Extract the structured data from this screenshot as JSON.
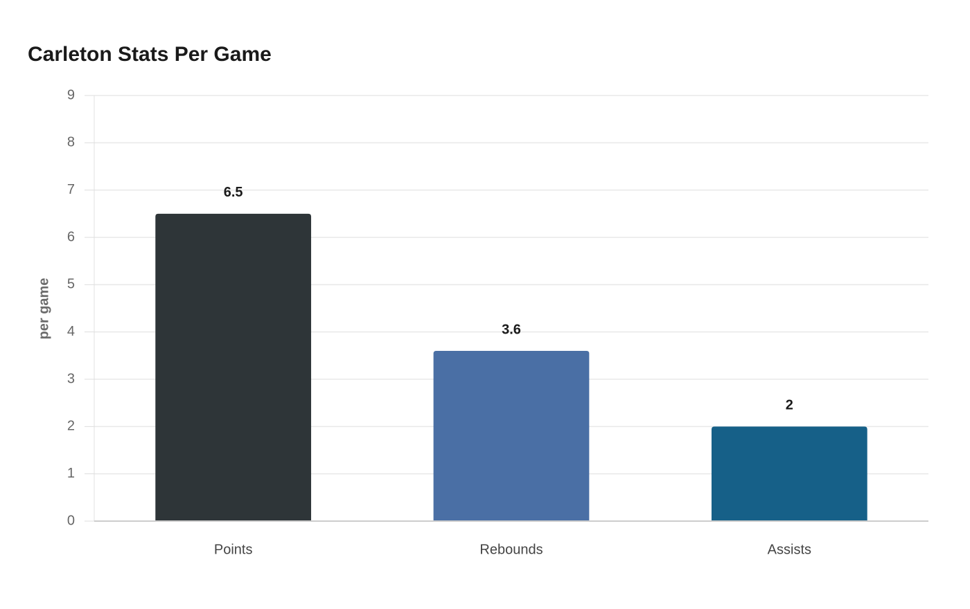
{
  "chart_data": {
    "type": "bar",
    "title": "Carleton Stats Per Game",
    "y_label": "per game",
    "categories": [
      "Points",
      "Rebounds",
      "Assists"
    ],
    "values": [
      6.5,
      3.6,
      2
    ],
    "colors": [
      "#2e3538",
      "#4a6fa5",
      "#166088"
    ],
    "ylim": [
      0,
      9
    ],
    "yticks": [
      0,
      1,
      2,
      3,
      4,
      5,
      6,
      7,
      8,
      9
    ],
    "grid": true
  }
}
